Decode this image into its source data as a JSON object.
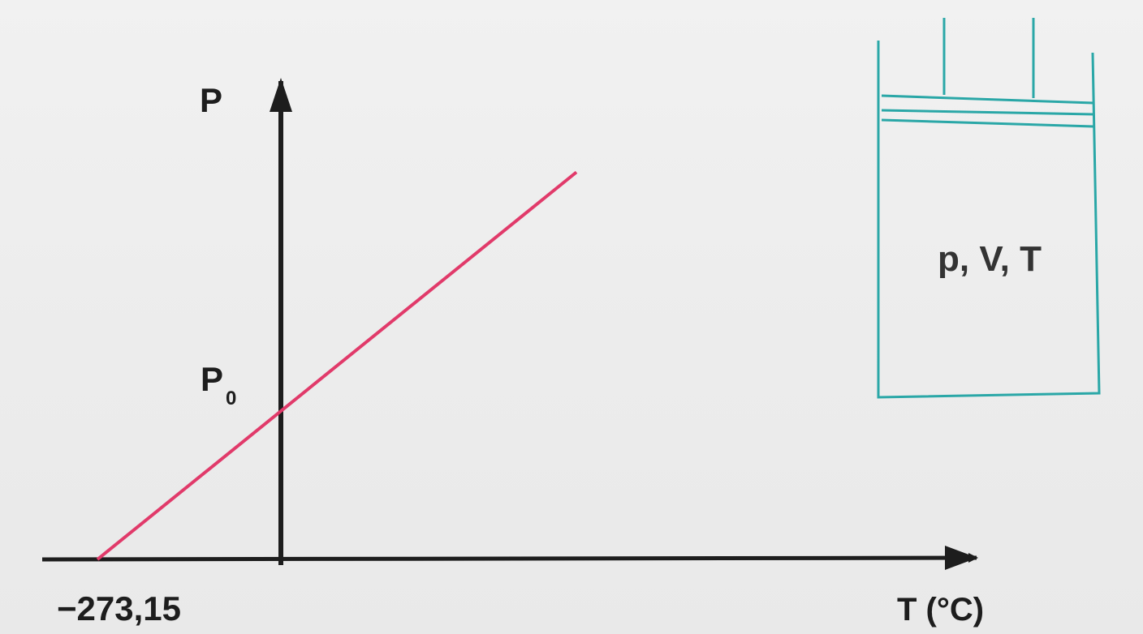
{
  "chart_data": {
    "type": "line",
    "xlabel": "T (°C)",
    "ylabel": "P",
    "x_tick_labels": [
      "−273,15"
    ],
    "y_intercept_label": {
      "base": "P",
      "subscript": "0"
    },
    "series": [
      {
        "x": [
          -273.15,
          0,
          440
        ],
        "y": [
          0,
          1,
          2.61
        ]
      }
    ],
    "line_color": "#e13a6a",
    "axis_color": "#1d1d1d"
  },
  "container": {
    "label": "p, V, T",
    "color": "#2aa7a7"
  }
}
